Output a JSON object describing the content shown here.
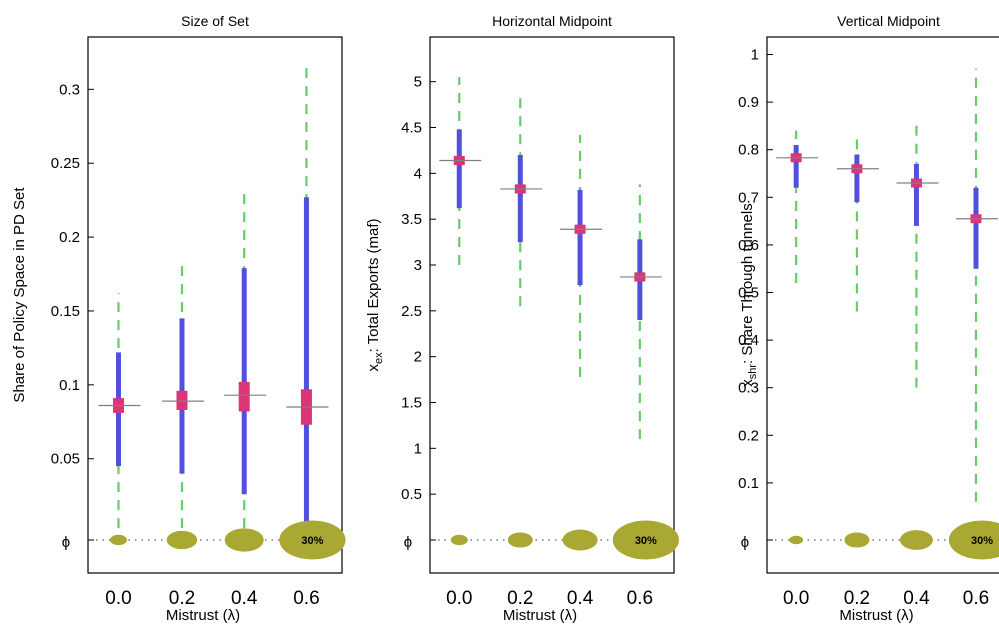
{
  "colors": {
    "whisker": "#66cc66",
    "iqr": "#5050dd",
    "median_box": "#dd3377",
    "median_line": "#808080",
    "empty_ellipse": "#a8a832",
    "axis": "#000000"
  },
  "shared": {
    "xlabel": "Mistrust (λ)",
    "xticks": [
      "0.0",
      "0.2",
      "0.4",
      "0.6"
    ],
    "empty_set_label": "ϕ",
    "empty_pct_label": "30%"
  },
  "chart_data": [
    {
      "type": "boxplot",
      "title": "Size of Set",
      "ylabel": "Share of Policy Space in PD Set",
      "ylim": [
        -0.005,
        0.33
      ],
      "yticks": [
        "0.05",
        "0.1",
        "0.15",
        "0.2",
        "0.25",
        "0.3"
      ],
      "ytick_values": [
        0.05,
        0.1,
        0.15,
        0.2,
        0.25,
        0.3
      ],
      "categories": [
        "0.0",
        "0.2",
        "0.4",
        "0.6"
      ],
      "whisker_low": [
        0.003,
        0.003,
        0.003,
        0.003
      ],
      "whisker_high": [
        0.162,
        0.182,
        0.232,
        0.318
      ],
      "q1": [
        0.045,
        0.04,
        0.026,
        0.003
      ],
      "q3": [
        0.122,
        0.145,
        0.179,
        0.227
      ],
      "median": [
        0.086,
        0.089,
        0.093,
        0.085
      ],
      "median_ci": [
        [
          0.081,
          0.091
        ],
        [
          0.083,
          0.096
        ],
        [
          0.082,
          0.102
        ],
        [
          0.073,
          0.097
        ]
      ],
      "empty_share": [
        0.01,
        0.05,
        0.09,
        0.3
      ],
      "empty_pct_shown": [
        false,
        false,
        false,
        true
      ]
    },
    {
      "type": "boxplot",
      "title": "Horizontal Midpoint",
      "ylabel": "x_ex: Total Exports (maf)",
      "ylabel_main": "x",
      "ylabel_sub": "ex",
      "ylabel_rest": ": Total Exports (maf)",
      "ylim": [
        0,
        5.4
      ],
      "yticks": [
        "0.5",
        "1",
        "1.5",
        "2",
        "2.5",
        "3",
        "3.5",
        "4",
        "4.5",
        "5"
      ],
      "ytick_values": [
        0.5,
        1,
        1.5,
        2,
        2.5,
        3,
        3.5,
        4,
        4.5,
        5
      ],
      "categories": [
        "0.0",
        "0.2",
        "0.4",
        "0.6"
      ],
      "whisker_low": [
        3.0,
        2.55,
        1.78,
        1.1
      ],
      "whisker_high": [
        5.05,
        4.9,
        4.42,
        3.88
      ],
      "q1": [
        3.62,
        3.25,
        2.78,
        2.4
      ],
      "q3": [
        4.48,
        4.2,
        3.82,
        3.28
      ],
      "median": [
        4.14,
        3.83,
        3.39,
        2.87
      ],
      "median_ci": [
        [
          4.09,
          4.19
        ],
        [
          3.78,
          3.88
        ],
        [
          3.34,
          3.44
        ],
        [
          2.82,
          2.92
        ]
      ],
      "empty_share": [
        0.01,
        0.03,
        0.07,
        0.3
      ],
      "empty_pct_shown": [
        false,
        false,
        false,
        true
      ]
    },
    {
      "type": "boxplot",
      "title": "Vertical Midpoint",
      "ylabel": "x_shr: Share Through tunnels",
      "ylabel_main": "x",
      "ylabel_sub": "shr",
      "ylabel_rest": ": Share Through tunnels",
      "ylim": [
        -0.02,
        1.02
      ],
      "yticks": [
        "0.1",
        "0.2",
        "0.3",
        "0.4",
        "0.5",
        "0.6",
        "0.7",
        "0.8",
        "0.9",
        "1"
      ],
      "ytick_values": [
        0.1,
        0.2,
        0.3,
        0.4,
        0.5,
        0.6,
        0.7,
        0.8,
        0.9,
        1
      ],
      "categories": [
        "0.0",
        "0.2",
        "0.4",
        "0.6"
      ],
      "whisker_low": [
        0.52,
        0.46,
        0.3,
        0.06
      ],
      "whisker_high": [
        0.84,
        0.83,
        0.86,
        0.97
      ],
      "q1": [
        0.72,
        0.69,
        0.64,
        0.55
      ],
      "q3": [
        0.81,
        0.79,
        0.77,
        0.72
      ],
      "median": [
        0.783,
        0.76,
        0.73,
        0.655
      ],
      "median_ci": [
        [
          0.778,
          0.788
        ],
        [
          0.755,
          0.765
        ],
        [
          0.725,
          0.735
        ],
        [
          0.648,
          0.662
        ]
      ],
      "empty_share": [
        0.005,
        0.03,
        0.06,
        0.3
      ],
      "empty_pct_shown": [
        false,
        false,
        false,
        true
      ]
    }
  ]
}
